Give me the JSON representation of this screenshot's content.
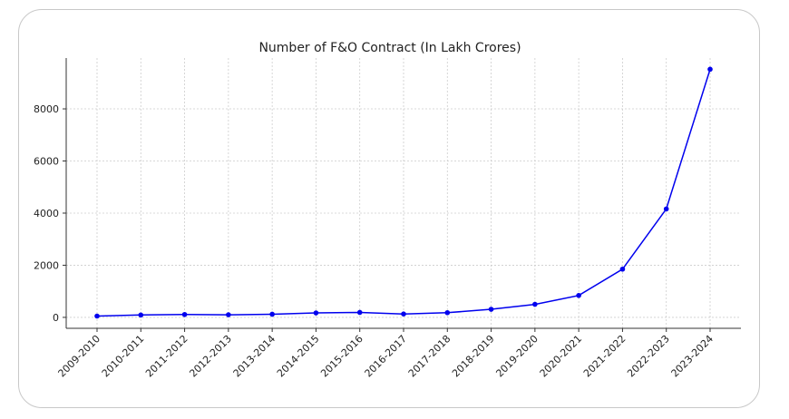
{
  "chart_data": {
    "type": "line",
    "title": "Number of F&O Contract (In Lakh Crores)",
    "xlabel": "",
    "ylabel": "",
    "categories": [
      "2009-2010",
      "2010-2011",
      "2011-2012",
      "2012-2013",
      "2013-2014",
      "2014-2015",
      "2015-2016",
      "2016-2017",
      "2017-2018",
      "2018-2019",
      "2019-2020",
      "2020-2021",
      "2021-2022",
      "2022-2023",
      "2023-2024"
    ],
    "values": [
      50,
      90,
      110,
      100,
      120,
      170,
      190,
      130,
      180,
      310,
      500,
      840,
      1850,
      4160,
      9520
    ],
    "yticks": [
      0,
      2000,
      4000,
      6000,
      8000
    ],
    "ylim": [
      -420,
      9950
    ],
    "grid": true,
    "line_color": "#0000ee",
    "marker_color": "#0000ee"
  }
}
